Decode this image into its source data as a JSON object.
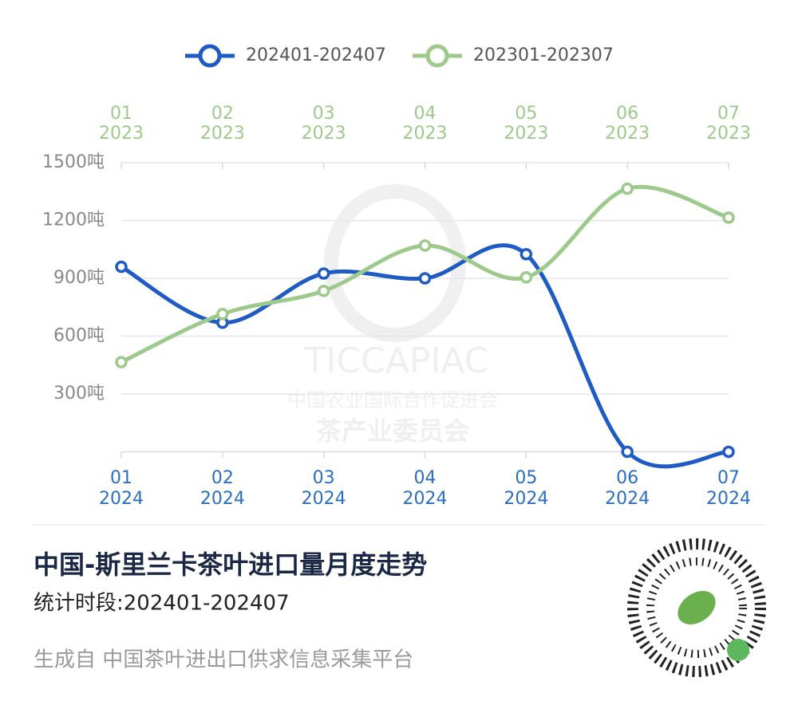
{
  "chart_data": {
    "type": "line",
    "title": "中国-斯里兰卡茶叶进口量月度走势",
    "subtitle": "统计时段:202401-202407",
    "footer": "生成自 中国茶叶进出口供求信息采集平台",
    "watermark": [
      "TICCAPIAC",
      "中国农业国际合作促进会",
      "茶产业委员会"
    ],
    "categories": [
      [
        "01",
        "2024"
      ],
      [
        "02",
        "2024"
      ],
      [
        "03",
        "2024"
      ],
      [
        "04",
        "2024"
      ],
      [
        "05",
        "2024"
      ],
      [
        "06",
        "2024"
      ],
      [
        "07",
        "2024"
      ]
    ],
    "x2_categories": [
      [
        "01",
        "2023"
      ],
      [
        "02",
        "2023"
      ],
      [
        "03",
        "2023"
      ],
      [
        "04",
        "2023"
      ],
      [
        "05",
        "2023"
      ],
      [
        "06",
        "2023"
      ],
      [
        "07",
        "2023"
      ]
    ],
    "series": [
      {
        "name": "202401-202407",
        "color": "#1f5bc4",
        "values": [
          960,
          670,
          925,
          900,
          1025,
          0,
          0
        ]
      },
      {
        "name": "202301-202307",
        "color": "#9dc98a",
        "axis": "x2",
        "values": [
          465,
          715,
          835,
          1070,
          905,
          1365,
          1215
        ]
      }
    ],
    "ylim": [
      0,
      1500
    ],
    "yticks": [
      {
        "value": 300,
        "label": "300吨"
      },
      {
        "value": 600,
        "label": "600吨"
      },
      {
        "value": 900,
        "label": "900吨"
      },
      {
        "value": 1200,
        "label": "1200吨"
      },
      {
        "value": 1500,
        "label": "1500吨"
      }
    ],
    "grid": true,
    "smooth": true
  }
}
